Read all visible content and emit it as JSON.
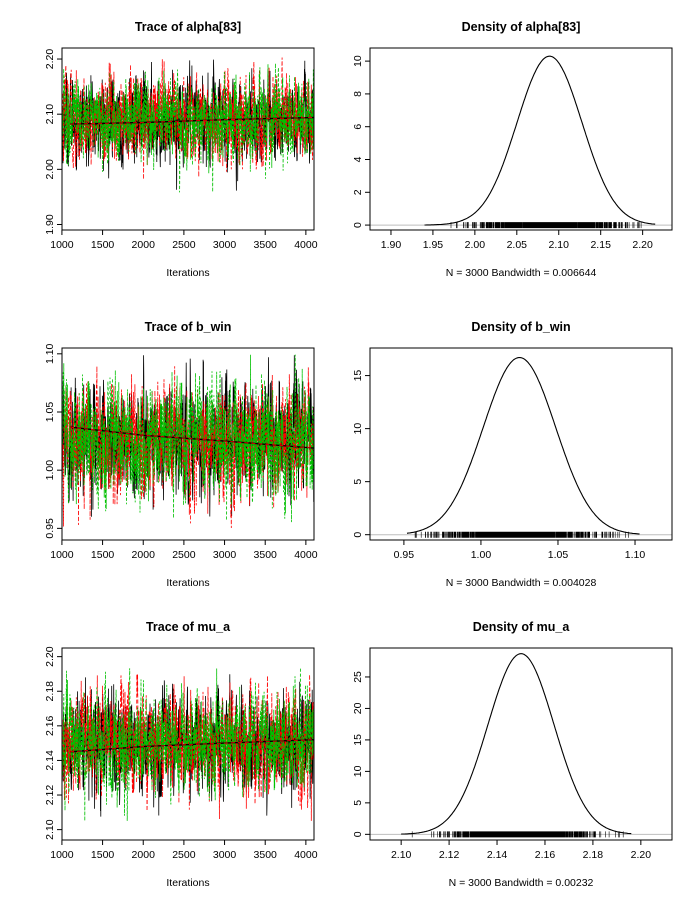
{
  "chart_data": [
    {
      "type": "line",
      "panel": "trace",
      "title": "Trace of alpha[83]",
      "xlabel": "Iterations",
      "xlim": [
        1001,
        4100
      ],
      "ylim": [
        1.89,
        2.22
      ],
      "xticks": [
        1000,
        1500,
        2000,
        2500,
        3000,
        3500,
        4000
      ],
      "yticks": [
        1.9,
        2.0,
        2.1,
        2.2
      ],
      "ytick_labels": [
        "1.90",
        "2.00",
        "2.10",
        "2.20"
      ],
      "series": [
        {
          "color": "#000000",
          "mean": 2.088,
          "sd": 0.038,
          "min": 1.94,
          "max": 2.2
        },
        {
          "color": "#ff0000",
          "mean": 2.089,
          "sd": 0.038,
          "min": 1.95,
          "max": 2.21
        },
        {
          "color": "#00c000",
          "mean": 2.09,
          "sd": 0.038,
          "min": 1.91,
          "max": 2.21
        }
      ],
      "smooth": {
        "x": [
          1100,
          2000,
          3000,
          4100
        ],
        "y": [
          2.082,
          2.085,
          2.09,
          2.094
        ]
      }
    },
    {
      "type": "line",
      "panel": "density",
      "title": "Density of alpha[83]",
      "xlabel": "N = 3000   Bandwidth = 0.006644",
      "xlim": [
        1.875,
        2.235
      ],
      "ylim": [
        -0.3,
        10.8
      ],
      "xticks": [
        1.9,
        1.95,
        2.0,
        2.05,
        2.1,
        2.15,
        2.2
      ],
      "xtick_labels": [
        "1.90",
        "1.95",
        "2.00",
        "2.05",
        "2.10",
        "2.15",
        "2.20"
      ],
      "yticks": [
        0,
        2,
        4,
        6,
        8,
        10
      ],
      "curve": {
        "mean": 2.089,
        "sd": 0.0388,
        "peak": 10.3,
        "from": 1.94,
        "to": 2.215
      },
      "rug": {
        "from": 1.945,
        "to": 2.205,
        "dense_from": 1.99,
        "dense_to": 2.19
      }
    },
    {
      "type": "line",
      "panel": "trace",
      "title": "Trace of b_win",
      "xlabel": "Iterations",
      "xlim": [
        1001,
        4100
      ],
      "ylim": [
        0.94,
        1.105
      ],
      "xticks": [
        1000,
        1500,
        2000,
        2500,
        3000,
        3500,
        4000
      ],
      "yticks": [
        0.95,
        1.0,
        1.05,
        1.1
      ],
      "ytick_labels": [
        "0.95",
        "1.00",
        "1.05",
        "1.10"
      ],
      "series": [
        {
          "color": "#000000",
          "mean": 1.027,
          "sd": 0.023,
          "min": 0.96,
          "max": 1.1
        },
        {
          "color": "#ff0000",
          "mean": 1.026,
          "sd": 0.023,
          "min": 0.95,
          "max": 1.09
        },
        {
          "color": "#00c000",
          "mean": 1.027,
          "sd": 0.024,
          "min": 0.955,
          "max": 1.1
        }
      ],
      "smooth": {
        "x": [
          1100,
          2000,
          3000,
          4100
        ],
        "y": [
          1.037,
          1.03,
          1.025,
          1.019
        ]
      }
    },
    {
      "type": "line",
      "panel": "density",
      "title": "Density of b_win",
      "xlabel": "N = 3000   Bandwidth = 0.004028",
      "xlim": [
        0.928,
        1.124
      ],
      "ylim": [
        -0.5,
        17.6
      ],
      "xticks": [
        0.95,
        1.0,
        1.05,
        1.1
      ],
      "xtick_labels": [
        "0.95",
        "1.00",
        "1.05",
        "1.10"
      ],
      "yticks": [
        0,
        5,
        10,
        15
      ],
      "curve": {
        "mean": 1.025,
        "sd": 0.0235,
        "peak": 16.7,
        "from": 0.952,
        "to": 1.103
      },
      "rug": {
        "from": 0.955,
        "to": 1.1,
        "dense_from": 0.965,
        "dense_to": 1.09
      }
    },
    {
      "type": "line",
      "panel": "trace",
      "title": "Trace of mu_a",
      "xlabel": "Iterations",
      "xlim": [
        1001,
        4100
      ],
      "ylim": [
        2.094,
        2.205
      ],
      "xticks": [
        1000,
        1500,
        2000,
        2500,
        3000,
        3500,
        4000
      ],
      "yticks": [
        2.1,
        2.12,
        2.14,
        2.16,
        2.18,
        2.2
      ],
      "ytick_labels": [
        "2.10",
        "2.12",
        "2.14",
        "2.16",
        "2.18",
        "2.20"
      ],
      "series": [
        {
          "color": "#000000",
          "mean": 2.15,
          "sd": 0.014,
          "min": 2.097,
          "max": 2.195
        },
        {
          "color": "#ff0000",
          "mean": 2.15,
          "sd": 0.014,
          "min": 2.103,
          "max": 2.19
        },
        {
          "color": "#00c000",
          "mean": 2.15,
          "sd": 0.014,
          "min": 2.105,
          "max": 2.195
        }
      ],
      "smooth": {
        "x": [
          1100,
          2000,
          3000,
          4100
        ],
        "y": [
          2.145,
          2.148,
          2.15,
          2.152
        ]
      }
    },
    {
      "type": "line",
      "panel": "density",
      "title": "Density of mu_a",
      "xlabel": "N = 3000   Bandwidth = 0.00232",
      "xlim": [
        2.087,
        2.213
      ],
      "ylim": [
        -0.9,
        29.6
      ],
      "xticks": [
        2.1,
        2.12,
        2.14,
        2.16,
        2.18,
        2.2
      ],
      "xtick_labels": [
        "2.10",
        "2.12",
        "2.14",
        "2.16",
        "2.18",
        "2.20"
      ],
      "yticks": [
        0,
        5,
        10,
        15,
        20,
        25
      ],
      "curve": {
        "mean": 2.15,
        "sd": 0.0138,
        "peak": 28.7,
        "from": 2.1,
        "to": 2.196
      },
      "rug": {
        "from": 2.1,
        "to": 2.196,
        "dense_from": 2.115,
        "dense_to": 2.185
      }
    }
  ]
}
